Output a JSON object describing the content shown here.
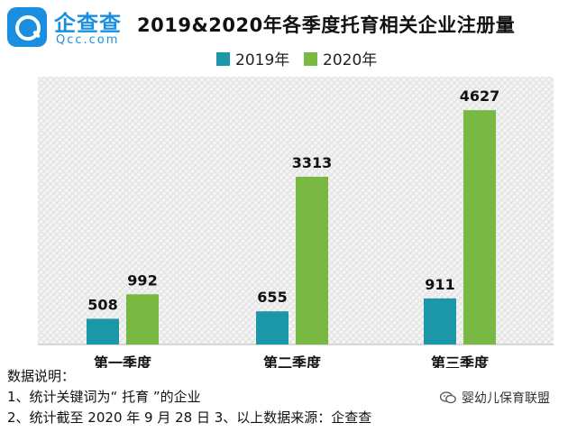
{
  "logo": {
    "name": "企查查",
    "domain": "Qcc.com",
    "brand_color": "#1a8fe0"
  },
  "title": "2019&2020年各季度托育相关企业注册量",
  "chart_data": {
    "type": "bar",
    "title": "2019&2020年各季度托育相关企业注册量",
    "categories": [
      "第一季度",
      "第二季度",
      "第三季度"
    ],
    "series": [
      {
        "name": "2019年",
        "values": [
          508,
          655,
          911
        ],
        "color": "#1b97a8"
      },
      {
        "name": "2020年",
        "values": [
          992,
          3313,
          4627
        ],
        "color": "#78b843"
      }
    ],
    "ylim": [
      0,
      5200
    ],
    "xlabel": "",
    "ylabel": "",
    "legend": "top",
    "grid": false
  },
  "notes": {
    "heading": "数据说明：",
    "line1": "1、统计关键词为“ 托育 ”的企业",
    "line2": "2、统计截至 2020 年 9 月 28 日  3、以上数据来源：企查查"
  },
  "watermark": {
    "text": "婴幼儿保育联盟",
    "icon": "wechat-icon"
  }
}
